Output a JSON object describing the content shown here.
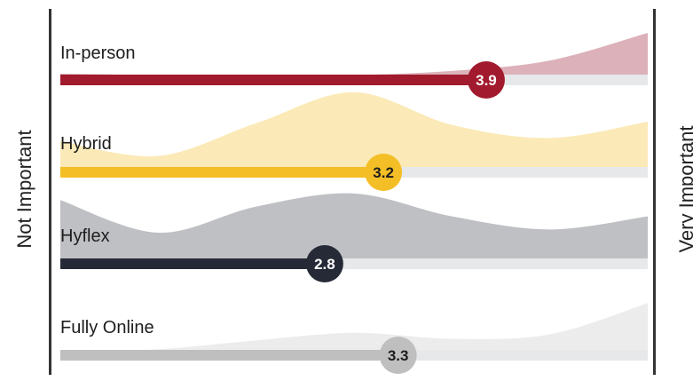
{
  "chart_data": {
    "type": "bar",
    "categories": [
      "In-person",
      "Hybrid",
      "Hyflex",
      "Fully Online"
    ],
    "values": [
      3.9,
      3.2,
      2.8,
      3.3
    ],
    "value_labels": [
      "3.9",
      "3.2",
      "2.8",
      "3.3"
    ],
    "xlim": [
      1,
      5
    ],
    "left_label": "Not Important",
    "right_label": "Very Important",
    "colors": {
      "bar": [
        "#a11a2d",
        "#f4be26",
        "#262a36",
        "#bfbfbf"
      ],
      "area": [
        "#dcb1b9",
        "#fbeab7",
        "#bfc0c4",
        "#ececec"
      ],
      "track": "#e7e8ea",
      "marker_text": [
        "#ffffff",
        "#1d1d1d",
        "#ffffff",
        "#1d1d1d"
      ]
    },
    "distributions": [
      [
        0.09,
        0.07,
        0.05,
        0.07,
        0.13,
        0.28,
        0.68
      ],
      [
        0.38,
        0.2,
        0.6,
        0.98,
        0.58,
        0.42,
        0.62
      ],
      [
        0.78,
        0.38,
        0.7,
        0.86,
        0.58,
        0.42,
        0.58
      ],
      [
        0.06,
        0.08,
        0.2,
        0.3,
        0.22,
        0.28,
        0.7
      ]
    ]
  }
}
